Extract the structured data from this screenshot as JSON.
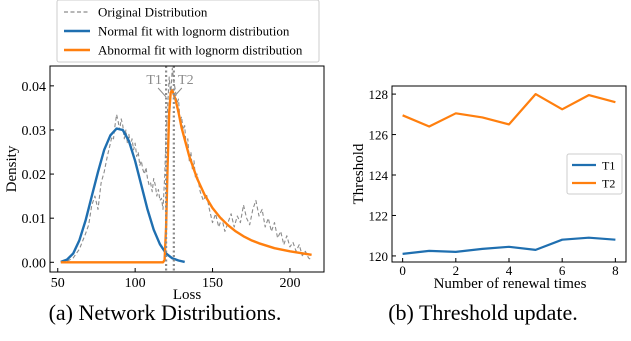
{
  "chart_data": [
    {
      "type": "line",
      "xlabel": "Loss",
      "ylabel": "Density",
      "xlim": [
        45,
        222
      ],
      "ylim": [
        -0.0022,
        0.0445
      ],
      "xticks": [
        50,
        100,
        150,
        200
      ],
      "yticks": [
        0.0,
        0.01,
        0.02,
        0.03,
        0.04
      ],
      "ytick_labels": [
        "0.00",
        "0.01",
        "0.02",
        "0.03",
        "0.04"
      ],
      "legend": {
        "placement": "top (above plot)"
      },
      "series": [
        {
          "name": "Original Distribution",
          "style": "dashed",
          "color": "#8c8c8c",
          "x": [
            52,
            56,
            60,
            64,
            68,
            70,
            72,
            74,
            76,
            78,
            80,
            82,
            84,
            85,
            86,
            87,
            88,
            89,
            90,
            91,
            92,
            93,
            94,
            95,
            96,
            97,
            98,
            99,
            100,
            101,
            102,
            103,
            104,
            105,
            106,
            107,
            108,
            109,
            110,
            111,
            112,
            113,
            114,
            115,
            116,
            117,
            118,
            119,
            120,
            121,
            122,
            123,
            124,
            125,
            126,
            127,
            128,
            129,
            130,
            131,
            132,
            133,
            134,
            135,
            136,
            137,
            138,
            139,
            140,
            142,
            144,
            146,
            148,
            150,
            152,
            154,
            156,
            158,
            160,
            162,
            164,
            166,
            168,
            170,
            172,
            174,
            176,
            178,
            180,
            182,
            184,
            186,
            188,
            190,
            192,
            194,
            196,
            198,
            200,
            202,
            204,
            206,
            208,
            210,
            212,
            214
          ],
          "values": [
            0.0,
            0.0002,
            0.001,
            0.003,
            0.0065,
            0.0085,
            0.013,
            0.015,
            0.012,
            0.018,
            0.0205,
            0.024,
            0.027,
            0.0285,
            0.028,
            0.031,
            0.0335,
            0.032,
            0.03,
            0.0325,
            0.031,
            0.028,
            0.03,
            0.027,
            0.029,
            0.026,
            0.028,
            0.0255,
            0.027,
            0.024,
            0.025,
            0.022,
            0.023,
            0.021,
            0.02,
            0.0215,
            0.019,
            0.0175,
            0.018,
            0.016,
            0.019,
            0.0175,
            0.015,
            0.0165,
            0.014,
            0.0145,
            0.012,
            0.019,
            0.029,
            0.035,
            0.042,
            0.038,
            0.044,
            0.041,
            0.039,
            0.036,
            0.037,
            0.032,
            0.033,
            0.03,
            0.031,
            0.026,
            0.028,
            0.023,
            0.025,
            0.021,
            0.023,
            0.019,
            0.02,
            0.016,
            0.014,
            0.0155,
            0.012,
            0.009,
            0.011,
            0.008,
            0.01,
            0.007,
            0.009,
            0.011,
            0.008,
            0.0105,
            0.009,
            0.013,
            0.01,
            0.0085,
            0.012,
            0.014,
            0.0105,
            0.012,
            0.008,
            0.01,
            0.007,
            0.009,
            0.0055,
            0.007,
            0.004,
            0.006,
            0.0035,
            0.0045,
            0.0025,
            0.004,
            0.0015,
            0.0025,
            0.001,
            0.0005
          ]
        },
        {
          "name": "Normal fit with lognorm distribution",
          "style": "solid",
          "color": "#1f6fb0",
          "x": [
            52,
            56,
            60,
            64,
            68,
            72,
            76,
            80,
            84,
            88,
            92,
            96,
            100,
            104,
            108,
            112,
            116,
            120,
            124,
            128,
            132
          ],
          "values": [
            0.0001,
            0.0006,
            0.002,
            0.005,
            0.0095,
            0.015,
            0.0205,
            0.0255,
            0.0288,
            0.0303,
            0.03,
            0.0275,
            0.023,
            0.0175,
            0.012,
            0.0074,
            0.0041,
            0.002,
            0.0009,
            0.0004,
            0.0001
          ]
        },
        {
          "name": "Abnormal fit with lognorm distribution",
          "style": "solid",
          "color": "#ff7f0e",
          "x": [
            52,
            60,
            80,
            100,
            110,
            116,
            118,
            119,
            120,
            121,
            122,
            123,
            124,
            126,
            128,
            130,
            135,
            140,
            145,
            150,
            155,
            160,
            165,
            170,
            175,
            180,
            190,
            200,
            214
          ],
          "values": [
            0,
            0,
            0,
            0,
            0,
            0,
            0,
            0.0005,
            0.008,
            0.022,
            0.034,
            0.0385,
            0.039,
            0.037,
            0.034,
            0.0305,
            0.024,
            0.019,
            0.0152,
            0.0123,
            0.0101,
            0.0084,
            0.007,
            0.0059,
            0.005,
            0.0043,
            0.0032,
            0.0025,
            0.0017
          ]
        }
      ],
      "annotations": [
        {
          "label": "T1",
          "x": 120,
          "style": "dotted",
          "color": "#8c8c8c"
        },
        {
          "label": "T2",
          "x": 125,
          "style": "dotted",
          "color": "#8c8c8c"
        }
      ]
    },
    {
      "type": "line",
      "xlabel": "Number of renewal times",
      "ylabel": "Threshold",
      "xlim": [
        -0.4,
        8.4
      ],
      "ylim": [
        119.7,
        128.4
      ],
      "xticks": [
        0,
        2,
        4,
        6,
        8
      ],
      "yticks": [
        120,
        122,
        124,
        126,
        128
      ],
      "legend": {
        "placement": "center-right"
      },
      "series": [
        {
          "name": "T1",
          "color": "#1f6fb0",
          "x": [
            0,
            1,
            2,
            3,
            4,
            5,
            6,
            7,
            8
          ],
          "values": [
            120.1,
            120.25,
            120.2,
            120.35,
            120.45,
            120.3,
            120.8,
            120.9,
            120.8
          ]
        },
        {
          "name": "T2",
          "color": "#ff7f0e",
          "x": [
            0,
            1,
            2,
            3,
            4,
            5,
            6,
            7,
            8
          ],
          "values": [
            126.95,
            126.4,
            127.05,
            126.85,
            126.5,
            128.0,
            127.25,
            127.95,
            127.6
          ]
        }
      ]
    }
  ],
  "captions": {
    "a": "(a) Network Distributions.",
    "b": "(b) Threshold update."
  }
}
